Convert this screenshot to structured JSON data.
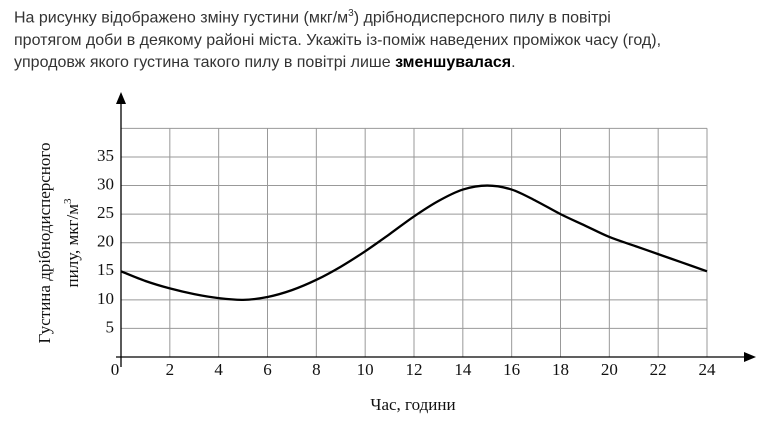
{
  "question": {
    "line1": [
      "На рисунку відображено зміну густини (мкг/м",
      "3",
      ") дрібнодисперсного пилу в повітрі"
    ],
    "line2": [
      "протягом доби в деякому районі міста. Укажіть із-поміж наведених проміжок часу (год),"
    ],
    "line3": [
      "упродовж якого густина такого пилу в повітрі лише ",
      "зменшувалася",
      "."
    ]
  },
  "chart_data": {
    "type": "line",
    "x_label": "Час, години",
    "y_label": {
      "line1": "Густина дрібнодисперсного",
      "line2": "пилу,  мкг/м",
      "sup": "3"
    },
    "x": [
      0,
      1,
      2,
      3,
      4,
      5,
      6,
      7,
      8,
      9,
      10,
      11,
      12,
      13,
      14,
      15,
      16,
      17,
      18,
      19,
      20,
      21,
      22,
      23,
      24
    ],
    "values": [
      15,
      13.3,
      12,
      11,
      10.3,
      10,
      10.5,
      11.7,
      13.5,
      15.8,
      18.5,
      21.5,
      24.6,
      27.3,
      29.3,
      30,
      29.3,
      27.3,
      25,
      23,
      21,
      19.5,
      18,
      16.5,
      15
    ],
    "color": "#000000",
    "xlim": [
      0,
      24
    ],
    "xticks": [
      0,
      2,
      4,
      6,
      8,
      10,
      12,
      14,
      16,
      18,
      20,
      22,
      24
    ],
    "ylim": [
      0,
      40
    ],
    "yticks": [
      5,
      10,
      15,
      20,
      25,
      30,
      35
    ],
    "grid": true
  }
}
